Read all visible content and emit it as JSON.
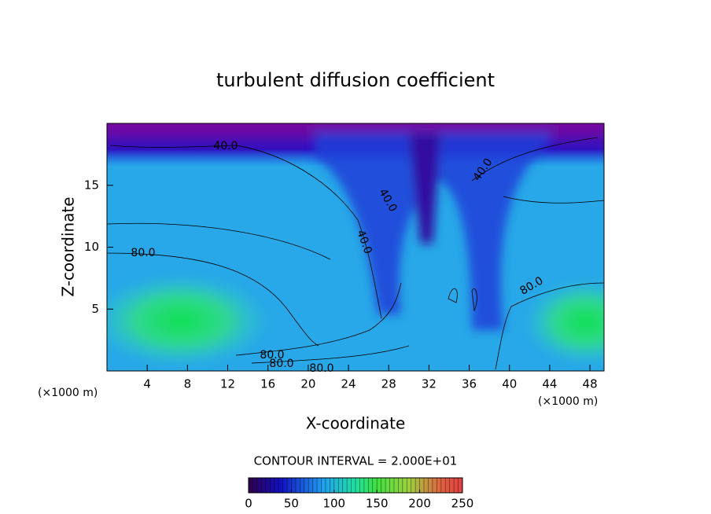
{
  "chart_data": {
    "type": "contour",
    "title": "turbulent diffusion coefficient",
    "x_label": "X-coordinate",
    "y_label": "Z-coordinate",
    "x_unit": "(×1000 m)",
    "y_unit": "(×1000 m)",
    "xlim": [
      0,
      49.4
    ],
    "ylim": [
      0,
      20
    ],
    "xticks": [
      4,
      8,
      12,
      16,
      20,
      24,
      28,
      32,
      36,
      40,
      44,
      48
    ],
    "yticks": [
      5,
      10,
      15
    ],
    "contour_labels": [
      "40.0",
      "40.0",
      "40.0",
      "40.0",
      "80.0",
      "80.0",
      "80.0",
      "80.0",
      "80.0"
    ],
    "colorbar": {
      "title": "CONTOUR INTERVAL = 2.000E+01",
      "lim": [
        0,
        250
      ],
      "ticks": [
        0,
        50,
        100,
        150,
        200,
        250
      ]
    }
  }
}
